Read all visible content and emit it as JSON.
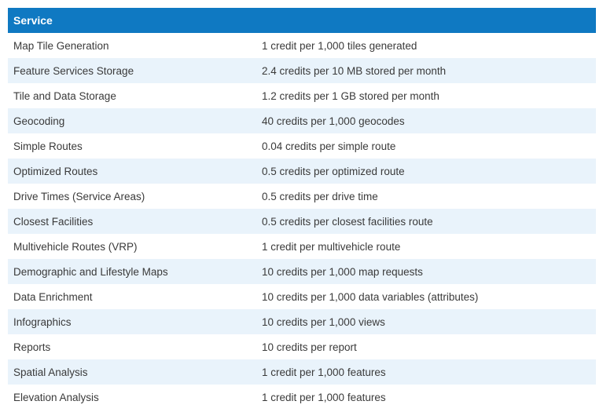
{
  "table": {
    "header": "Service",
    "rows": [
      {
        "service": "Map Tile Generation",
        "cost": "1 credit per 1,000 tiles generated"
      },
      {
        "service": "Feature Services Storage",
        "cost": "2.4 credits per 10 MB stored per month"
      },
      {
        "service": "Tile and Data Storage",
        "cost": "1.2 credits per 1 GB stored per month"
      },
      {
        "service": "Geocoding",
        "cost": "40 credits per 1,000 geocodes"
      },
      {
        "service": "Simple Routes",
        "cost": "0.04 credits per simple route"
      },
      {
        "service": "Optimized Routes",
        "cost": "0.5 credits per optimized route"
      },
      {
        "service": "Drive Times (Service Areas)",
        "cost": "0.5 credits per drive time"
      },
      {
        "service": "Closest Facilities",
        "cost": "0.5 credits per closest facilities route"
      },
      {
        "service": "Multivehicle Routes (VRP)",
        "cost": "1 credit per multivehicle route"
      },
      {
        "service": "Demographic and Lifestyle Maps",
        "cost": "10 credits per 1,000 map requests"
      },
      {
        "service": "Data Enrichment",
        "cost": "10 credits per 1,000 data variables (attributes)"
      },
      {
        "service": "Infographics",
        "cost": "10 credits per 1,000 views"
      },
      {
        "service": "Reports",
        "cost": "10 credits per report"
      },
      {
        "service": "Spatial Analysis",
        "cost": "1 credit per 1,000 features"
      },
      {
        "service": "Elevation Analysis",
        "cost": "1 credit per 1,000 features"
      }
    ]
  },
  "colors": {
    "header_bg": "#0f79c2",
    "alt_row_bg": "#e9f3fb",
    "text": "#3a3a3a"
  }
}
